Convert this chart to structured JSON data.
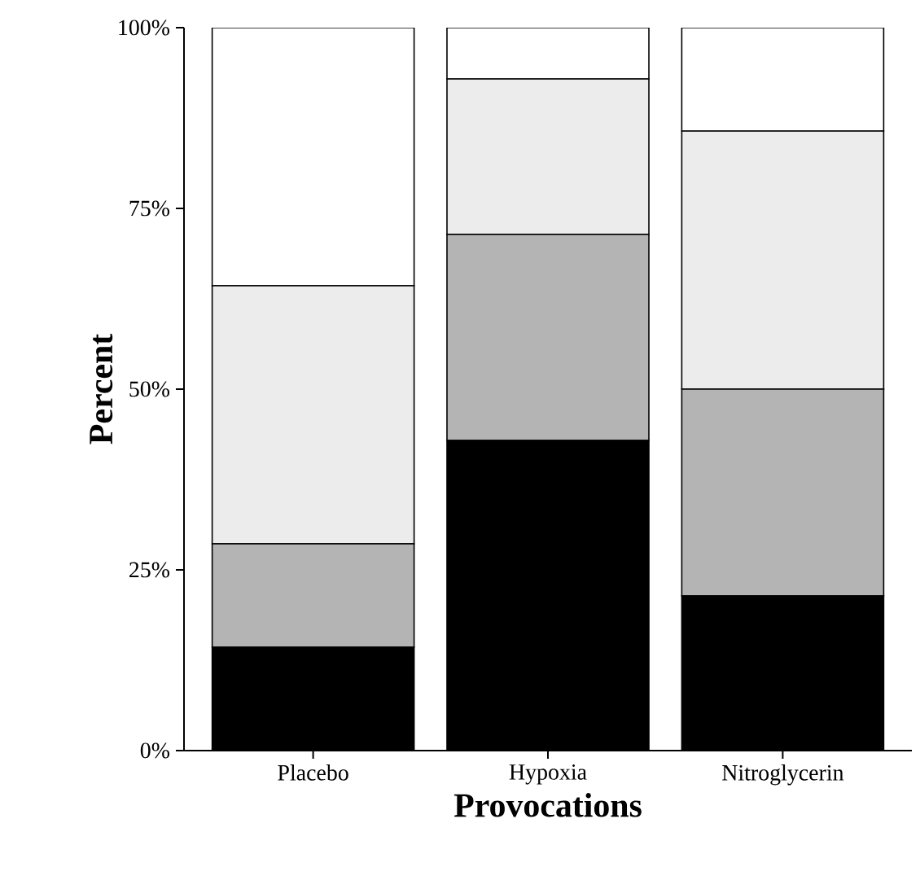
{
  "chart_data": {
    "type": "bar",
    "stacked": true,
    "xlabel": "Provocations",
    "ylabel": "Percent",
    "categories": [
      "Placebo",
      "Hypoxia",
      "Nitroglycerin"
    ],
    "series": [
      {
        "color": "#000000",
        "values": [
          14.3,
          42.9,
          21.4
        ]
      },
      {
        "color": "#b4b4b4",
        "values": [
          14.3,
          28.5,
          28.6
        ]
      },
      {
        "color": "#ececec",
        "values": [
          35.7,
          21.5,
          35.7
        ]
      },
      {
        "color": "#ffffff",
        "values": [
          35.7,
          7.1,
          14.3
        ]
      }
    ],
    "ylim": [
      0,
      100
    ],
    "yticks": [
      {
        "value": 0,
        "label": "0%"
      },
      {
        "value": 25,
        "label": "25%"
      },
      {
        "value": 50,
        "label": "50%"
      },
      {
        "value": 75,
        "label": "75%"
      },
      {
        "value": 100,
        "label": "100%"
      }
    ],
    "grid": false
  }
}
